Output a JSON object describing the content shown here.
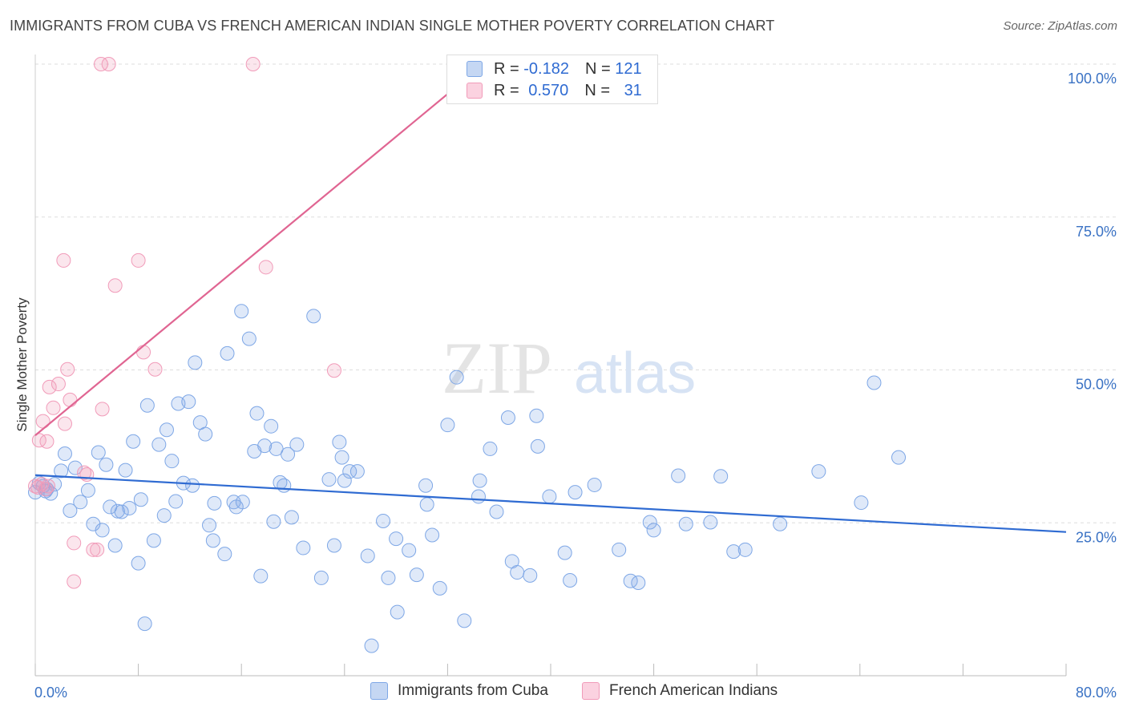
{
  "title": "IMMIGRANTS FROM CUBA VS FRENCH AMERICAN INDIAN SINGLE MOTHER POVERTY CORRELATION CHART",
  "source": "Source: ZipAtlas.com",
  "watermark": {
    "zip": "ZIP",
    "atlas": "atlas"
  },
  "legend_top": {
    "rows": [
      {
        "r_label": "R =",
        "r_value": "-0.182",
        "n_label": "N =",
        "n_value": "121",
        "color": "#7ea7e6"
      },
      {
        "r_label": "R =",
        "r_value": "0.570",
        "n_label": "N =",
        "n_value": "31",
        "color": "#f19bb9"
      }
    ]
  },
  "legend_bottom": [
    {
      "label": "Immigrants from Cuba",
      "color": "#7ea7e6"
    },
    {
      "label": "French American Indians",
      "color": "#f19bb9"
    }
  ],
  "chart_data": {
    "type": "scatter",
    "xlabel": "",
    "ylabel": "Single Mother Poverty",
    "xlim": [
      0,
      80
    ],
    "ylim": [
      0,
      100
    ],
    "x_tick_labels": [
      {
        "value": 0,
        "label": "0.0%"
      },
      {
        "value": 80,
        "label": "80.0%"
      }
    ],
    "y_tick_labels": [
      {
        "value": 25,
        "label": "25.0%"
      },
      {
        "value": 50,
        "label": "50.0%"
      },
      {
        "value": 75,
        "label": "75.0%"
      },
      {
        "value": 100,
        "label": "100.0%"
      }
    ],
    "grid": true,
    "series": [
      {
        "name": "Immigrants from Cuba",
        "color": "#7ea7e6",
        "trend": {
          "x": [
            0,
            80
          ],
          "y": [
            32.8,
            23.5
          ]
        },
        "points": [
          [
            0.0,
            30
          ],
          [
            0.3,
            31.5
          ],
          [
            0.6,
            31
          ],
          [
            0.9,
            30.5
          ],
          [
            1.2,
            29.8
          ],
          [
            1.5,
            31.3
          ],
          [
            2.0,
            33.5
          ],
          [
            2.3,
            36.3
          ],
          [
            2.7,
            27
          ],
          [
            3.1,
            34
          ],
          [
            3.5,
            28.4
          ],
          [
            4.1,
            30.3
          ],
          [
            4.5,
            24.8
          ],
          [
            4.9,
            36.5
          ],
          [
            5.2,
            23.8
          ],
          [
            5.5,
            34.5
          ],
          [
            5.8,
            27.6
          ],
          [
            6.2,
            21.3
          ],
          [
            6.4,
            26.9
          ],
          [
            6.7,
            26.8
          ],
          [
            7.0,
            33.6
          ],
          [
            7.3,
            27.4
          ],
          [
            7.6,
            38.3
          ],
          [
            8.0,
            18.4
          ],
          [
            8.2,
            28.8
          ],
          [
            8.5,
            8.5
          ],
          [
            8.7,
            44.2
          ],
          [
            9.2,
            22.1
          ],
          [
            9.6,
            37.8
          ],
          [
            10.0,
            26.2
          ],
          [
            10.2,
            40.2
          ],
          [
            10.6,
            35.1
          ],
          [
            10.9,
            28.5
          ],
          [
            11.1,
            44.5
          ],
          [
            11.5,
            31.5
          ],
          [
            11.9,
            44.8
          ],
          [
            12.2,
            31.1
          ],
          [
            12.4,
            51.2
          ],
          [
            12.8,
            41.4
          ],
          [
            13.2,
            39.5
          ],
          [
            13.5,
            24.6
          ],
          [
            13.8,
            22.1
          ],
          [
            13.9,
            28.2
          ],
          [
            14.7,
            19.9
          ],
          [
            14.9,
            52.7
          ],
          [
            15.4,
            28.4
          ],
          [
            15.6,
            27.6
          ],
          [
            16.1,
            28.4
          ],
          [
            16.0,
            59.6
          ],
          [
            16.6,
            55.1
          ],
          [
            17.0,
            36.7
          ],
          [
            17.2,
            42.9
          ],
          [
            17.5,
            16.3
          ],
          [
            17.8,
            37.6
          ],
          [
            18.3,
            40.8
          ],
          [
            18.5,
            25.2
          ],
          [
            18.7,
            37.1
          ],
          [
            19.0,
            31.6
          ],
          [
            19.3,
            31.1
          ],
          [
            19.6,
            36.2
          ],
          [
            19.9,
            25.9
          ],
          [
            20.3,
            37.8
          ],
          [
            20.8,
            20.9
          ],
          [
            21.6,
            58.8
          ],
          [
            22.2,
            16
          ],
          [
            22.8,
            32.1
          ],
          [
            23.2,
            21.3
          ],
          [
            23.6,
            38.2
          ],
          [
            23.8,
            35.7
          ],
          [
            24.0,
            31.9
          ],
          [
            24.4,
            33.4
          ],
          [
            25.0,
            33.4
          ],
          [
            25.8,
            19.6
          ],
          [
            26.1,
            4.9
          ],
          [
            27.0,
            25.3
          ],
          [
            27.4,
            16
          ],
          [
            28.0,
            22.4
          ],
          [
            28.1,
            10.4
          ],
          [
            29.0,
            20.5
          ],
          [
            29.6,
            16.5
          ],
          [
            30.3,
            31.1
          ],
          [
            30.4,
            28
          ],
          [
            30.8,
            23
          ],
          [
            31.4,
            14.3
          ],
          [
            32.0,
            41
          ],
          [
            32.7,
            48.8
          ],
          [
            33.3,
            9
          ],
          [
            34.4,
            29.3
          ],
          [
            34.5,
            31.9
          ],
          [
            35.3,
            37.1
          ],
          [
            35.8,
            26.8
          ],
          [
            36.7,
            42.2
          ],
          [
            37.0,
            18.7
          ],
          [
            37.4,
            16.9
          ],
          [
            38.4,
            16.4
          ],
          [
            38.9,
            42.5
          ],
          [
            39.0,
            37.5
          ],
          [
            39.9,
            29.3
          ],
          [
            41.1,
            20.1
          ],
          [
            41.5,
            15.6
          ],
          [
            41.9,
            30
          ],
          [
            43.4,
            31.2
          ],
          [
            45.3,
            20.6
          ],
          [
            46.2,
            15.5
          ],
          [
            46.8,
            15.2
          ],
          [
            47.7,
            25.1
          ],
          [
            48.0,
            23.8
          ],
          [
            49.9,
            32.7
          ],
          [
            50.5,
            24.8
          ],
          [
            52.4,
            25.1
          ],
          [
            53.2,
            32.6
          ],
          [
            54.2,
            20.3
          ],
          [
            55.1,
            20.6
          ],
          [
            57.8,
            24.8
          ],
          [
            60.8,
            33.4
          ],
          [
            64.1,
            28.3
          ],
          [
            65.1,
            47.9
          ],
          [
            67.0,
            35.7
          ],
          [
            0.8,
            30.2
          ]
        ]
      },
      {
        "name": "French American Indians",
        "color": "#f19bb9",
        "trend": {
          "x": [
            0,
            34.8
          ],
          "y": [
            39.3,
            100
          ]
        },
        "points": [
          [
            0.0,
            31
          ],
          [
            0.3,
            38.5
          ],
          [
            0.6,
            41.6
          ],
          [
            0.9,
            38.3
          ],
          [
            1.1,
            47.2
          ],
          [
            1.4,
            43.8
          ],
          [
            1.8,
            47.7
          ],
          [
            2.3,
            41.2
          ],
          [
            2.2,
            67.9
          ],
          [
            2.5,
            50.1
          ],
          [
            2.7,
            45.1
          ],
          [
            3.0,
            21.7
          ],
          [
            3.0,
            15.4
          ],
          [
            3.8,
            33.2
          ],
          [
            4.0,
            32.9
          ],
          [
            4.5,
            20.6
          ],
          [
            4.8,
            20.6
          ],
          [
            5.2,
            43.6
          ],
          [
            5.1,
            100
          ],
          [
            5.7,
            100
          ],
          [
            6.2,
            63.8
          ],
          [
            8.0,
            67.9
          ],
          [
            8.4,
            52.9
          ],
          [
            9.3,
            50.1
          ],
          [
            16.9,
            100
          ],
          [
            17.9,
            66.8
          ],
          [
            23.2,
            49.9
          ],
          [
            0.5,
            31.3
          ],
          [
            0.8,
            30.5
          ],
          [
            1.0,
            31
          ],
          [
            0.2,
            30.8
          ]
        ]
      }
    ]
  }
}
